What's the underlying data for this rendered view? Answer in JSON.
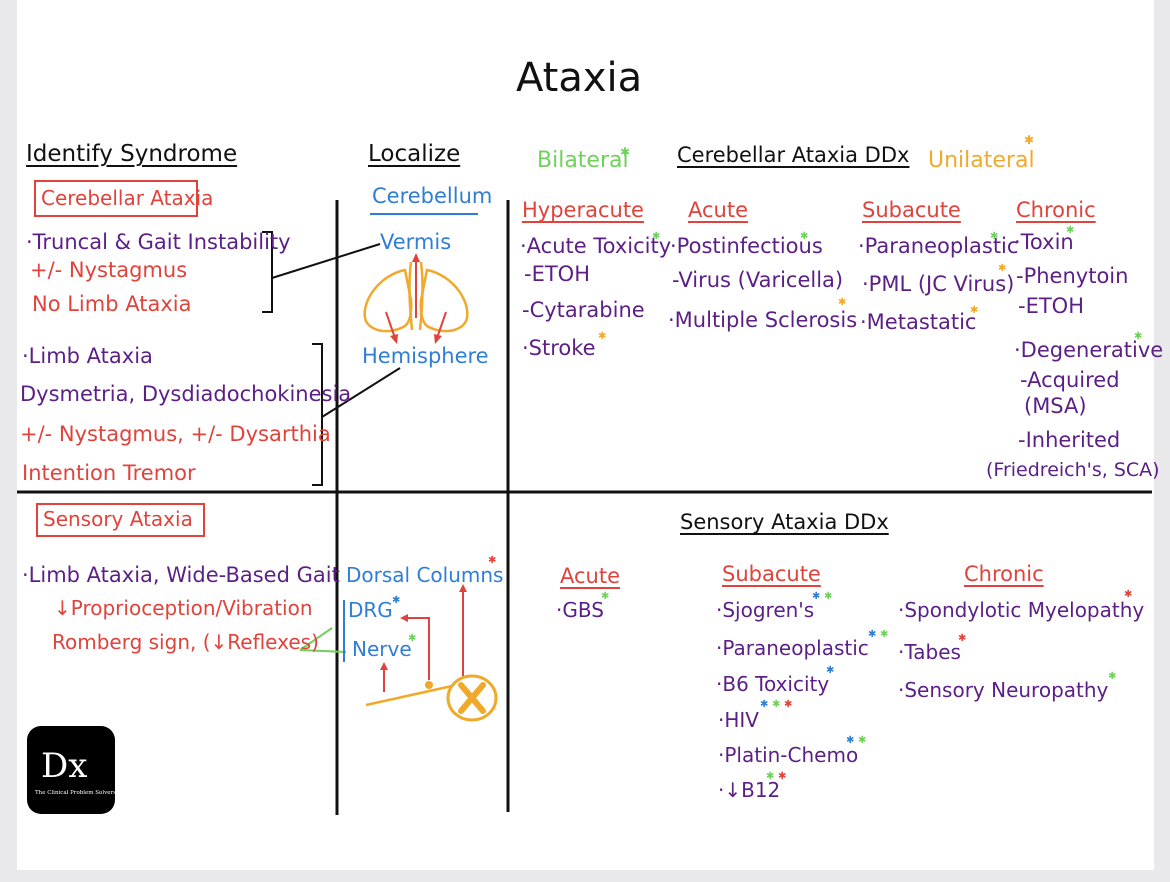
{
  "title": "Ataxia",
  "headers": {
    "identify": "Identify Syndrome",
    "localize": "Localize",
    "bilateral": "Bilateral",
    "cerebellar_ddx": "Cerebellar Ataxia DDx",
    "unilateral": "Unilateral",
    "sensory_ddx": "Sensory Ataxia DDx"
  },
  "cerebellar": {
    "label": "Cerebellar Ataxia",
    "group1": [
      "·Truncal & Gait Instability",
      "+/- Nystagmus",
      "No Limb Ataxia"
    ],
    "group2": [
      "·Limb Ataxia",
      "Dysmetria, Dysdiadochokinesia",
      "+/- Nystagmus, +/- Dysarthia",
      "Intention Tremor"
    ]
  },
  "localize_cerebellar": {
    "organ": "Cerebellum",
    "vermis": "Vermis",
    "hemisphere": "Hemisphere"
  },
  "cerebellar_ddx": {
    "hyperacute": {
      "label": "Hyperacute",
      "items": [
        "·Acute Toxicity",
        "-ETOH",
        "-Cytarabine",
        "·Stroke"
      ]
    },
    "acute": {
      "label": "Acute",
      "items": [
        "·Postinfectious",
        "-Virus (Varicella)",
        "·Multiple Sclerosis"
      ]
    },
    "subacute": {
      "label": "Subacute",
      "items": [
        "·Paraneoplastic",
        "·PML (JC Virus)",
        "·Metastatic"
      ]
    },
    "chronic": {
      "label": "Chronic",
      "items": [
        "·Toxin",
        "-Phenytoin",
        "-ETOH",
        "·Degenerative",
        "-Acquired",
        "(MSA)",
        "-Inherited",
        "(Friedreich's, SCA)"
      ]
    }
  },
  "sensory": {
    "label": "Sensory Ataxia",
    "items": [
      "·Limb Ataxia, Wide-Based Gait",
      "↓Proprioception/Vibration",
      "Romberg sign, (↓Reflexes)"
    ]
  },
  "localize_sensory": {
    "dorsal_columns": "Dorsal Columns",
    "drg": "DRG",
    "nerve": "Nerve"
  },
  "sensory_ddx": {
    "acute": {
      "label": "Acute",
      "items": [
        "·GBS"
      ]
    },
    "subacute": {
      "label": "Subacute",
      "items": [
        "·Sjogren's",
        "·Paraneoplastic",
        "·B6 Toxicity",
        "·HIV",
        "·Platin-Chemo",
        "·↓B12"
      ]
    },
    "chronic": {
      "label": "Chronic",
      "items": [
        "·Spondylotic Myelopathy",
        "·Tabes",
        "·Sensory Neuropathy"
      ]
    }
  },
  "logo": {
    "mark": "Dx",
    "tagline": "The Clinical Problem Solvers"
  },
  "colors": {
    "red": "#e0433b",
    "purple": "#5b1f86",
    "blue": "#2f7ed6",
    "green": "#6fd15a",
    "orange": "#f0a92a",
    "ink": "#111111"
  }
}
